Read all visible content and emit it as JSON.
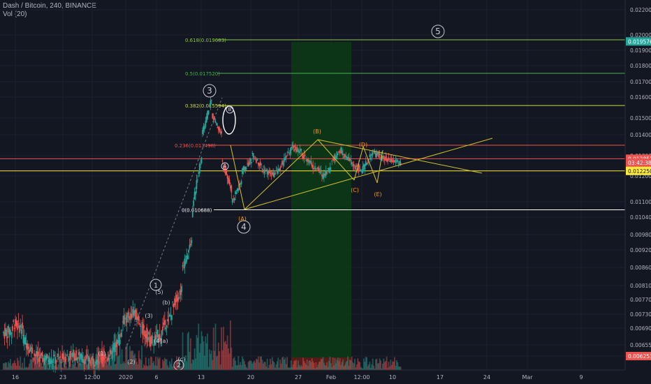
{
  "header": {
    "title": "Dash / Bitcoin, 240, BINANCE",
    "volume_label": "Vol (20)"
  },
  "colors": {
    "background": "#131722",
    "up": "#26a69a",
    "down": "#ef5350",
    "grid": "#1e222d",
    "axis_text": "#b2b5be",
    "wave_label": "#c9ccd4",
    "corrective_label": "#ff9800",
    "triangle_line": "#d4c12b",
    "buy_zone": "#0b3b14"
  },
  "chart_data": {
    "type": "candlestick",
    "y_ticks": [
      "0.022000",
      "0.020000",
      "0.019000",
      "0.018000",
      "0.017000",
      "0.016000",
      "0.015000",
      "0.014000",
      "0.013000",
      "0.012000",
      "0.011000",
      "0.010400",
      "0.009800",
      "0.009200",
      "0.008600",
      "0.008100",
      "0.007700",
      "0.007300",
      "0.006900",
      "0.006550",
      "0.006253"
    ],
    "ylim": [
      0.0059,
      0.0222
    ],
    "x_ticks": [
      "16",
      "23",
      "12:00",
      "2020",
      "6",
      "13",
      "20",
      "27",
      "Feb",
      "12:00",
      "10",
      "17",
      "24",
      "Mar",
      "9"
    ],
    "price_tags": [
      {
        "label": "0.019576",
        "value": 0.019576,
        "bg": "#26a69a",
        "fg": "#ffffff"
      },
      {
        "label": "0.012851",
        "value": 0.012851,
        "bg": "#ef5350",
        "fg": "#ffffff"
      },
      {
        "label": "03:42:38",
        "value": 0.012651,
        "bg": "#ef5350",
        "fg": "#ffffff"
      },
      {
        "label": "0.012250",
        "value": 0.01225,
        "bg": "#ffeb3b",
        "fg": "#131722"
      },
      {
        "label": "0.006253",
        "value": 0.006253,
        "bg": "#ef5350",
        "fg": "#ffffff"
      }
    ],
    "fib_levels": [
      {
        "label": "0.618(0.019683)",
        "value": 0.019683,
        "color": "#8bc34a"
      },
      {
        "label": "0.5(0.017520)",
        "value": 0.01752,
        "color": "#4caf50"
      },
      {
        "label": "0.382(0.015594)",
        "value": 0.015594,
        "color": "#cddc39"
      },
      {
        "label": "0.236(0.013498)",
        "value": 0.013498,
        "color": "#ef5350"
      },
      {
        "label": "0(0.010688)",
        "value": 0.010688,
        "color": "#ffffff"
      }
    ],
    "horizontal_lines": [
      {
        "value": 0.01285,
        "color": "#ef5350"
      },
      {
        "value": 0.01225,
        "color": "#ffeb3b"
      }
    ],
    "wave_labels": [
      {
        "text": "3",
        "circled": true,
        "color": "#c9ccd4"
      },
      {
        "text": "4",
        "circled": true,
        "color": "#c9ccd4"
      },
      {
        "text": "5",
        "circled": true,
        "color": "#c9ccd4"
      },
      {
        "text": "1",
        "circled": true,
        "color": "#c9ccd4"
      },
      {
        "text": "2",
        "circled": true,
        "color": "#c9ccd4"
      },
      {
        "text": "B",
        "circled": true,
        "color": "#c9ccd4"
      },
      {
        "text": "A",
        "circled": true,
        "color": "#c9ccd4"
      },
      {
        "text": "(B)",
        "circled": false,
        "color": "#ff9800"
      },
      {
        "text": "(D)",
        "circled": false,
        "color": "#ff9800"
      },
      {
        "text": "(C)",
        "circled": false,
        "color": "#ff9800"
      },
      {
        "text": "(E)",
        "circled": false,
        "color": "#ff9800"
      },
      {
        "text": "(A)",
        "circled": false,
        "color": "#ff9800"
      },
      {
        "text": "(b)",
        "circled": false,
        "color": "#c9ccd4"
      },
      {
        "text": "(1)",
        "circled": false,
        "color": "#c9ccd4"
      },
      {
        "text": "(3)",
        "circled": false,
        "color": "#c9ccd4"
      },
      {
        "text": "(5)",
        "circled": false,
        "color": "#c9ccd4"
      },
      {
        "text": "(4)",
        "circled": false,
        "color": "#c9ccd4"
      },
      {
        "text": "(a)",
        "circled": false,
        "color": "#c9ccd4"
      },
      {
        "text": "(c)",
        "circled": false,
        "color": "#c9ccd4"
      },
      {
        "text": "(2)",
        "circled": false,
        "color": "#c9ccd4"
      }
    ],
    "price_path": [
      [
        0.0068,
        0.00685
      ],
      [
        0.00705,
        0.0069
      ],
      [
        0.0067,
        0.0064
      ],
      [
        0.0063,
        0.0062
      ],
      [
        0.0062,
        0.00615
      ],
      [
        0.00615,
        0.0062
      ],
      [
        0.0062,
        0.0063
      ],
      [
        0.0063,
        0.0062
      ],
      [
        0.0062,
        0.0061
      ],
      [
        0.0061,
        0.0062
      ],
      [
        0.0062,
        0.0063
      ],
      [
        0.0064,
        0.0068
      ],
      [
        0.0071,
        0.0073
      ],
      [
        0.0074,
        0.007
      ],
      [
        0.0069,
        0.0066
      ],
      [
        0.0066,
        0.0068
      ],
      [
        0.0069,
        0.0073
      ],
      [
        0.0075,
        0.008
      ],
      [
        0.0085,
        0.0095
      ],
      [
        0.0105,
        0.013
      ],
      [
        0.014,
        0.016
      ],
      [
        0.0152,
        0.014
      ],
      [
        0.0128,
        0.0114
      ],
      [
        0.011,
        0.0118
      ],
      [
        0.0122,
        0.0128
      ],
      [
        0.0131,
        0.0125
      ],
      [
        0.0123,
        0.0121
      ],
      [
        0.012,
        0.0124
      ],
      [
        0.0126,
        0.0133
      ],
      [
        0.0134,
        0.0132
      ],
      [
        0.013,
        0.0127
      ],
      [
        0.0125,
        0.0122
      ],
      [
        0.012,
        0.0124
      ],
      [
        0.0127,
        0.0133
      ],
      [
        0.0131,
        0.0127
      ],
      [
        0.0126,
        0.0123
      ],
      [
        0.0122,
        0.013
      ],
      [
        0.0131,
        0.013
      ],
      [
        0.0129,
        0.0127
      ],
      [
        0.0128,
        0.0126
      ]
    ]
  }
}
